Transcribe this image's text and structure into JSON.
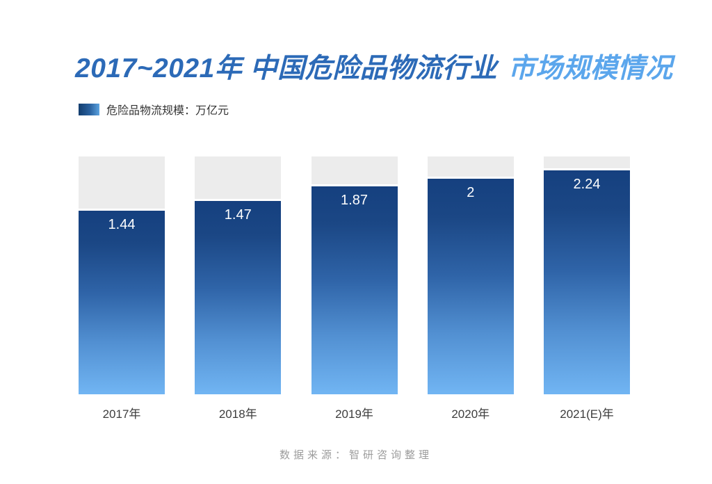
{
  "title": {
    "part1": "2017~2021年 中国危险品物流行业",
    "part2": "市场规模情况"
  },
  "legend": {
    "label": "危险品物流规模：万亿元"
  },
  "chart_data": {
    "type": "bar",
    "title": "2017~2021年 中国危险品物流行业 市场规模情况",
    "series_name": "危险品物流规模",
    "unit": "万亿元",
    "categories": [
      "2017年",
      "2018年",
      "2019年",
      "2020年",
      "2021(E)年"
    ],
    "values": [
      1.44,
      1.47,
      1.87,
      2,
      2.24
    ],
    "value_labels": [
      "1.44",
      "1.47",
      "1.87",
      "2",
      "2.24"
    ],
    "bar_height_pct": [
      77.2,
      81.3,
      87.4,
      90.6,
      94.2
    ],
    "legend_position": "top-left",
    "grid": false,
    "value_label_position": "inside-top",
    "colors": {
      "track": "#ececec",
      "bar_gradient_top": "#15407f",
      "bar_gradient_bottom": "#71b5f3",
      "value_label": "#ffffff",
      "axis_label": "#3d3d3d",
      "title_main": "#2c6ab7",
      "title_accent": "#5ba6ec"
    }
  },
  "source": {
    "label": "数据来源：智研咨询整理"
  }
}
